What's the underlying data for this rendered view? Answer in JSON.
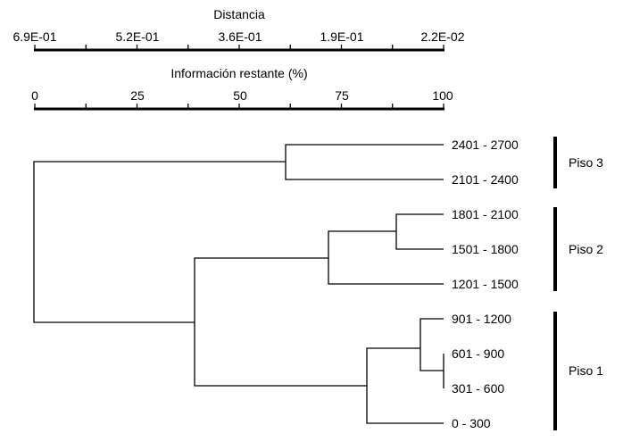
{
  "distance_axis": {
    "title": "Distancia",
    "labels": [
      "6.9E-01",
      "5.2E-01",
      "3.6E-01",
      "1.9E-01",
      "2.2E-02"
    ]
  },
  "info_axis": {
    "title": "Información restante (%)",
    "labels": [
      "0",
      "25",
      "50",
      "75",
      "100"
    ]
  },
  "leaves": [
    "2401 - 2700",
    "2101 - 2400",
    "1801 - 2100",
    "1501 - 1800",
    "1201 - 1500",
    "901 - 1200",
    "601 - 900",
    "301 - 600",
    "0 - 300"
  ],
  "groups": [
    {
      "label": "Piso 3",
      "leaves": [
        "2401 - 2700",
        "2101 - 2400"
      ]
    },
    {
      "label": "Piso 2",
      "leaves": [
        "1801 - 2100",
        "1501 - 1800",
        "1201 - 1500"
      ]
    },
    {
      "label": "Piso 1",
      "leaves": [
        "901 - 1200",
        "601 - 900",
        "301 - 600",
        "0 - 300"
      ]
    }
  ],
  "merges_information_remaining_pct": [
    {
      "joins": [
        "601 - 900",
        "301 - 600"
      ],
      "at": 99
    },
    {
      "joins": [
        "1801 - 2100",
        "1501 - 1800"
      ],
      "at": 88
    },
    {
      "joins": [
        "901 - 1200",
        "601 - 900 + 301 - 600"
      ],
      "at": 94
    },
    {
      "joins": [
        "901 - 1200 ... 301 - 600",
        "0 - 300"
      ],
      "at": 81
    },
    {
      "joins": [
        "1801 - 2100 + 1501 - 1800",
        "1201 - 1500"
      ],
      "at": 71.5
    },
    {
      "joins": [
        "2401 - 2700",
        "2101 - 2400"
      ],
      "at": 61
    },
    {
      "joins": [
        "Piso 2",
        "Piso 1"
      ],
      "at": 39
    },
    {
      "joins": [
        "Piso 3",
        "Piso 2 + Piso 1"
      ],
      "at": 0
    }
  ]
}
